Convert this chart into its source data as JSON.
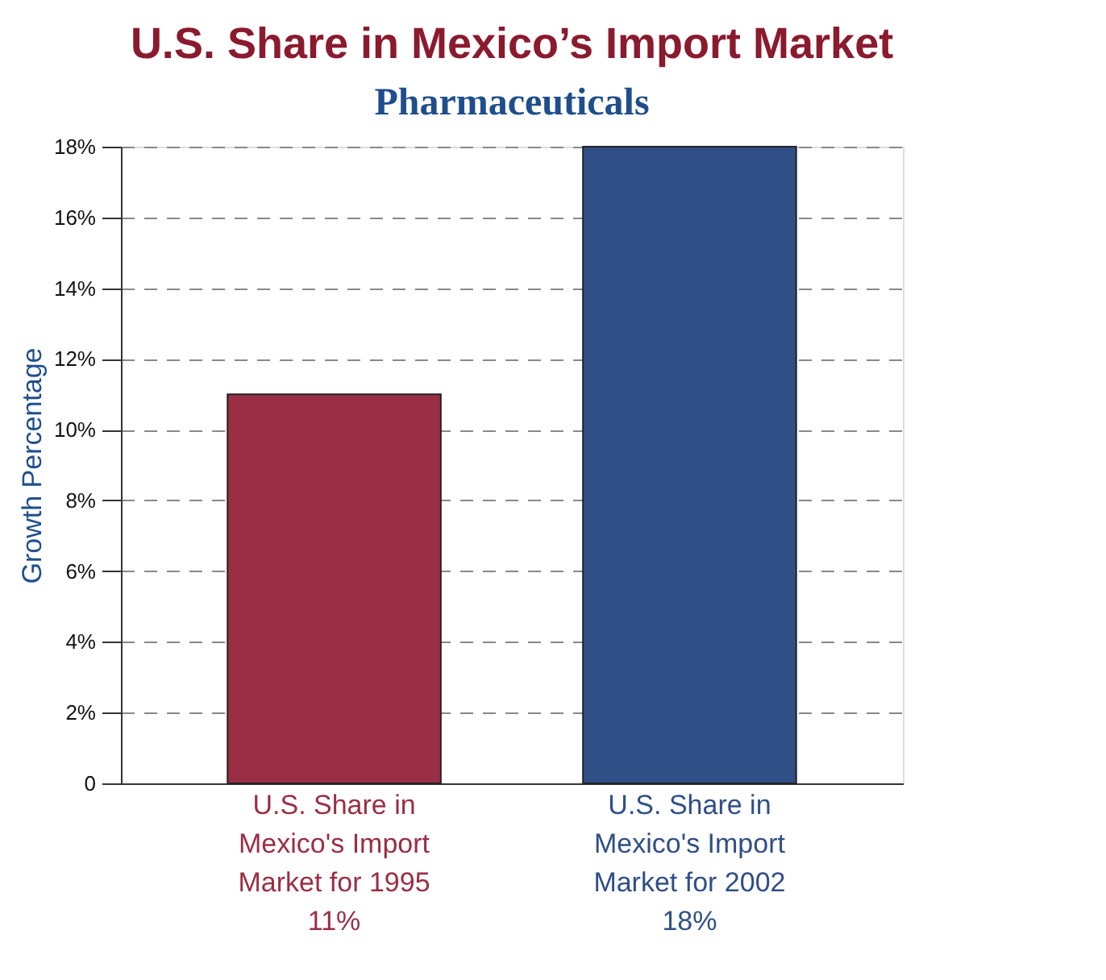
{
  "chart_data": {
    "type": "bar",
    "title": "U.S. Share in Mexico’s Import Market",
    "subtitle": "Pharmaceuticals",
    "ylabel": "Growth Percentage",
    "categories": [
      "U.S. Share in\nMexico's Import\nMarket for 1995\n11%",
      "U.S. Share in\nMexico's Import\nMarket for 2002\n18%"
    ],
    "values": [
      11,
      18
    ],
    "colors": [
      "#9a2e45",
      "#2f4f86"
    ],
    "ylim": [
      0,
      18
    ],
    "yticks": [
      {
        "value": 0,
        "label": "0"
      },
      {
        "value": 2,
        "label": "2%"
      },
      {
        "value": 4,
        "label": "4%"
      },
      {
        "value": 6,
        "label": "6%"
      },
      {
        "value": 8,
        "label": "8%"
      },
      {
        "value": 10,
        "label": "10%"
      },
      {
        "value": 12,
        "label": "12%"
      },
      {
        "value": 14,
        "label": "14%"
      },
      {
        "value": 16,
        "label": "16%"
      },
      {
        "value": 18,
        "label": "18%"
      }
    ],
    "grid": "y",
    "legend": false
  }
}
